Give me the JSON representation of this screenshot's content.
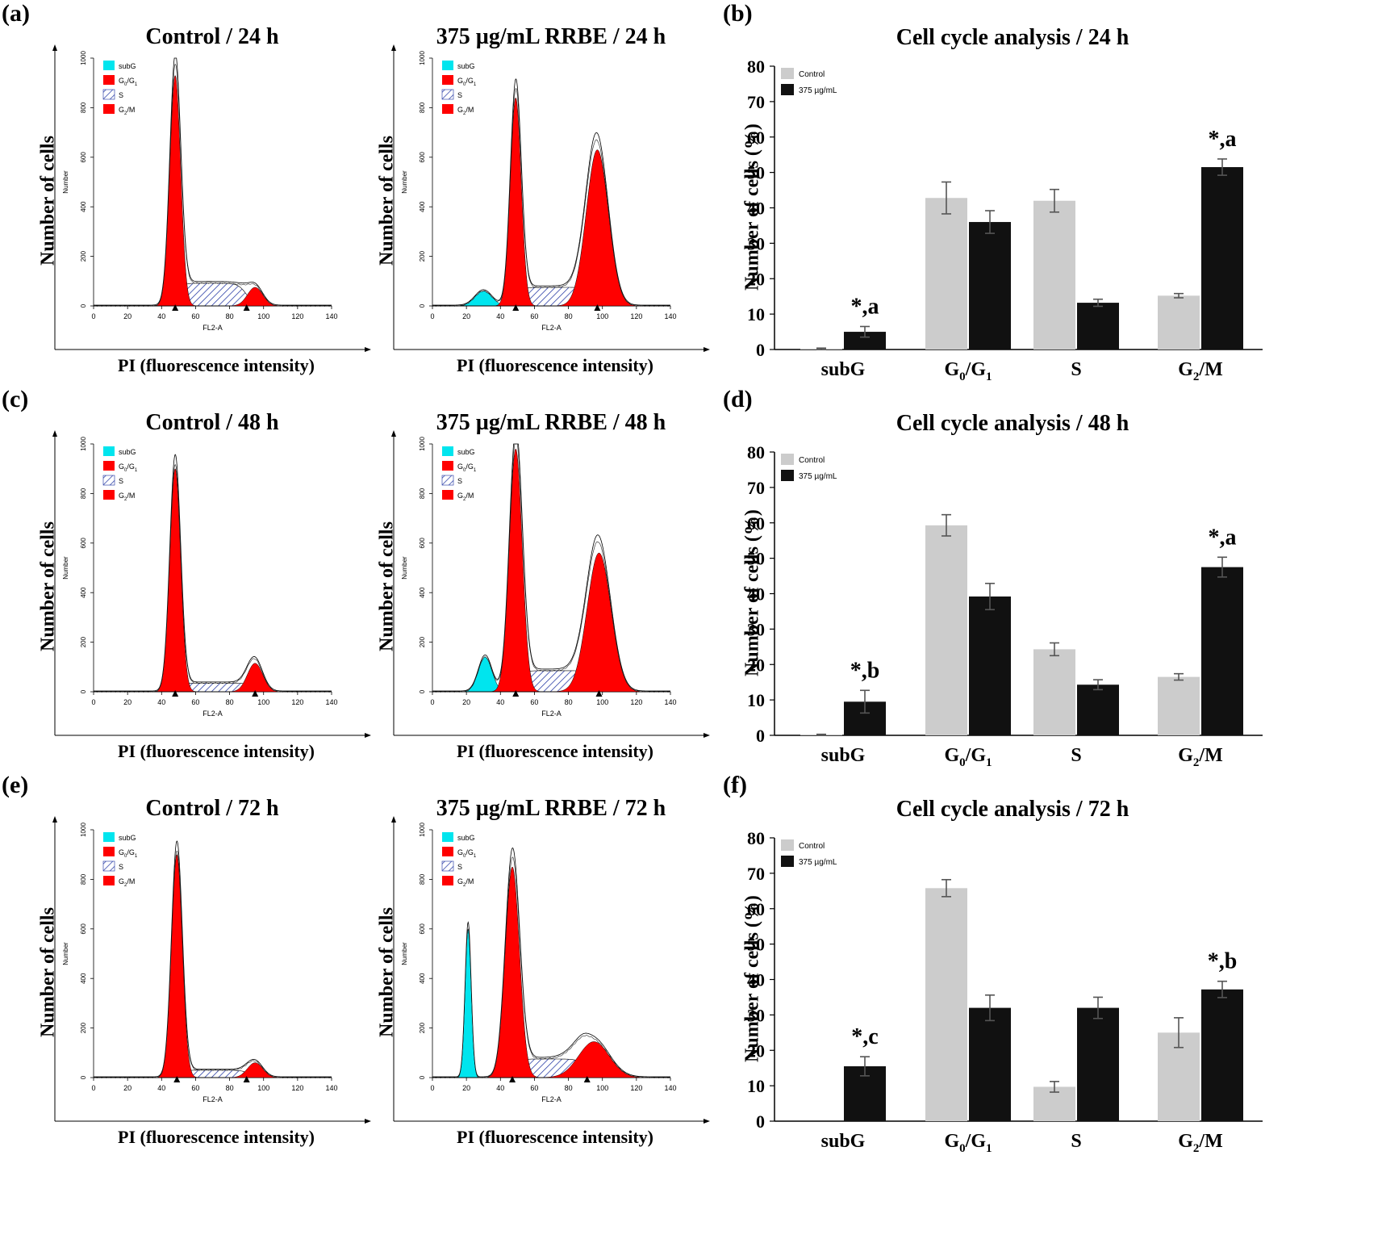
{
  "panel_letters": [
    "(a)",
    "(b)",
    "(c)",
    "(d)",
    "(e)",
    "(f)"
  ],
  "colors": {
    "subG": "#00e5ee",
    "g0g1": "#ff0000",
    "s_hatch": "#1a2fa0",
    "g2m": "#ff0000",
    "control_bar": "#cccccc",
    "treated_bar": "#111111"
  },
  "histograms": [
    {
      "title": "Control / 24 h",
      "ylabel": "Number of cells",
      "xlabel": "PI (fluorescence intensity)",
      "inner_ylabel": "Number",
      "inner_xlabel": "FL2-A",
      "legend": [
        "subG",
        "G0/G1",
        "S",
        "G2/M"
      ],
      "yticks": [
        "0",
        "200",
        "400",
        "600",
        "800",
        "1000"
      ],
      "xticks": [
        "0",
        "20",
        "40",
        "60",
        "80",
        "100",
        "120",
        "140"
      ],
      "peaks": {
        "subG": [
          0,
          0,
          0
        ],
        "g0g1": [
          48,
          930,
          3.2
        ],
        "s": [
          48,
          92,
          90
        ],
        "g2m": [
          95,
          75,
          4.5
        ],
        "envelope_extra": 30
      },
      "markers": [
        48,
        90
      ]
    },
    {
      "title": "375 µg/mL RRBE / 24 h",
      "ylabel": "Number of cells",
      "xlabel": "PI (fluorescence intensity)",
      "inner_ylabel": "Number",
      "inner_xlabel": "FL2-A",
      "legend": [
        "subG",
        "G0/G1",
        "S",
        "G2/M"
      ],
      "yticks": [
        "0",
        "200",
        "400",
        "600",
        "800",
        "1000"
      ],
      "xticks": [
        "0",
        "20",
        "40",
        "60",
        "80",
        "100",
        "120",
        "140"
      ],
      "peaks": {
        "subG": [
          30,
          60,
          5
        ],
        "g0g1": [
          49,
          840,
          3.2
        ],
        "s": [
          49,
          75,
          97
        ],
        "g2m": [
          97,
          630,
          6.5
        ],
        "envelope_extra": 60
      },
      "markers": [
        49,
        97
      ]
    },
    {
      "title": "Control / 48 h",
      "ylabel": "Number of cells",
      "xlabel": "PI (fluorescence intensity)",
      "inner_ylabel": "Number",
      "inner_xlabel": "FL2-A",
      "legend": [
        "subG",
        "G0/G1",
        "S",
        "G2/M"
      ],
      "yticks": [
        "0",
        "200",
        "400",
        "600",
        "800",
        "1000"
      ],
      "xticks": [
        "0",
        "20",
        "40",
        "60",
        "80",
        "100",
        "120",
        "140"
      ],
      "peaks": {
        "subG": [
          0,
          0,
          0
        ],
        "g0g1": [
          48,
          900,
          3.2
        ],
        "s": [
          48,
          35,
          95
        ],
        "g2m": [
          95,
          115,
          4.5
        ],
        "envelope_extra": 25
      },
      "markers": [
        48,
        95
      ]
    },
    {
      "title": "375 µg/mL RRBE / 48 h",
      "ylabel": "Number of cells",
      "xlabel": "PI (fluorescence intensity)",
      "inner_ylabel": "Number",
      "inner_xlabel": "FL2-A",
      "legend": [
        "subG",
        "G0/G1",
        "S",
        "G2/M"
      ],
      "yticks": [
        "0",
        "200",
        "400",
        "600",
        "800",
        "1000"
      ],
      "xticks": [
        "0",
        "20",
        "40",
        "60",
        "80",
        "100",
        "120",
        "140"
      ],
      "peaks": {
        "subG": [
          31,
          140,
          4
        ],
        "g0g1": [
          49,
          980,
          3.8
        ],
        "s": [
          49,
          85,
          98
        ],
        "g2m": [
          98,
          560,
          7
        ],
        "envelope_extra": 90
      },
      "markers": [
        49,
        98
      ]
    },
    {
      "title": "Control / 72 h",
      "ylabel": "Number of cells",
      "xlabel": "PI (fluorescence intensity)",
      "inner_ylabel": "Number",
      "inner_xlabel": "FL2-A",
      "legend": [
        "subG",
        "G0/G1",
        "S",
        "G2/M"
      ],
      "yticks": [
        "0",
        "200",
        "400",
        "600",
        "800",
        "1000"
      ],
      "xticks": [
        "0",
        "20",
        "40",
        "60",
        "80",
        "100",
        "120",
        "140"
      ],
      "peaks": {
        "subG": [
          0,
          0,
          0
        ],
        "g0g1": [
          49,
          900,
          3.2
        ],
        "s": [
          49,
          30,
          92
        ],
        "g2m": [
          95,
          60,
          4.5
        ],
        "envelope_extra": 25
      },
      "markers": [
        49,
        90
      ]
    },
    {
      "title": "375 µg/mL RRBE / 72 h",
      "ylabel": "Number of cells",
      "xlabel": "PI (fluorescence intensity)",
      "inner_ylabel": "Number",
      "inner_xlabel": "FL2-A",
      "legend": [
        "subG",
        "G0/G1",
        "S",
        "G2/M"
      ],
      "yticks": [
        "0",
        "200",
        "400",
        "600",
        "800",
        "1000"
      ],
      "xticks": [
        "0",
        "20",
        "40",
        "60",
        "80",
        "100",
        "120",
        "140"
      ],
      "peaks": {
        "subG": [
          21,
          600,
          1.8
        ],
        "g0g1": [
          47,
          850,
          4.2
        ],
        "s": [
          47,
          75,
          91
        ],
        "g2m": [
          95,
          145,
          9
        ],
        "envelope_extra": 200
      },
      "markers": [
        47,
        91
      ]
    }
  ],
  "chart_data": [
    {
      "type": "bar",
      "title": "Cell cycle analysis / 24 h",
      "xlabel": "",
      "ylabel": "Number of cells (%)",
      "ylim": [
        0,
        80
      ],
      "yticks": [
        "0",
        "10",
        "20",
        "30",
        "40",
        "50",
        "60",
        "70",
        "80"
      ],
      "categories": [
        "subG",
        "G0/G1",
        "S",
        "G2/M"
      ],
      "series": [
        {
          "name": "Control",
          "values": [
            0.2,
            42.8,
            42.0,
            15.2
          ],
          "errors": [
            0.2,
            4.5,
            3.2,
            0.6
          ]
        },
        {
          "name": "375 µg/mL",
          "values": [
            5.0,
            36.0,
            13.2,
            51.5
          ],
          "errors": [
            1.5,
            3.2,
            1.0,
            2.3
          ]
        }
      ],
      "annotations": [
        {
          "category": "subG",
          "text": "*,a"
        },
        {
          "category": "G2/M",
          "text": "*,a"
        }
      ]
    },
    {
      "type": "bar",
      "title": "Cell cycle analysis / 48 h",
      "xlabel": "",
      "ylabel": "Number of cells (%)",
      "ylim": [
        0,
        80
      ],
      "yticks": [
        "0",
        "10",
        "20",
        "30",
        "40",
        "50",
        "60",
        "70",
        "80"
      ],
      "categories": [
        "subG",
        "G0/G1",
        "S",
        "G2/M"
      ],
      "series": [
        {
          "name": "Control",
          "values": [
            0.2,
            59.3,
            24.3,
            16.5
          ],
          "errors": [
            0.1,
            3.0,
            1.8,
            0.9
          ]
        },
        {
          "name": "375 µg/mL",
          "values": [
            9.5,
            39.2,
            14.3,
            47.5
          ],
          "errors": [
            3.2,
            3.7,
            1.4,
            2.8
          ]
        }
      ],
      "annotations": [
        {
          "category": "subG",
          "text": "*,b"
        },
        {
          "category": "G2/M",
          "text": "*,a"
        }
      ]
    },
    {
      "type": "bar",
      "title": "Cell cycle analysis / 72 h",
      "xlabel": "",
      "ylabel": "Number of cells (%)",
      "ylim": [
        0,
        80
      ],
      "yticks": [
        "0",
        "10",
        "20",
        "30",
        "40",
        "50",
        "60",
        "70",
        "80"
      ],
      "categories": [
        "subG",
        "G0/G1",
        "S",
        "G2/M"
      ],
      "series": [
        {
          "name": "Control",
          "values": [
            0,
            65.8,
            9.7,
            25.0
          ],
          "errors": [
            0,
            2.4,
            1.5,
            4.2
          ]
        },
        {
          "name": "375 µg/mL",
          "values": [
            15.5,
            32.0,
            32.0,
            37.2
          ],
          "errors": [
            2.7,
            3.6,
            3.0,
            2.3
          ]
        }
      ],
      "annotations": [
        {
          "category": "subG",
          "text": "*,c"
        },
        {
          "category": "G2/M",
          "text": "*,b"
        }
      ]
    }
  ]
}
